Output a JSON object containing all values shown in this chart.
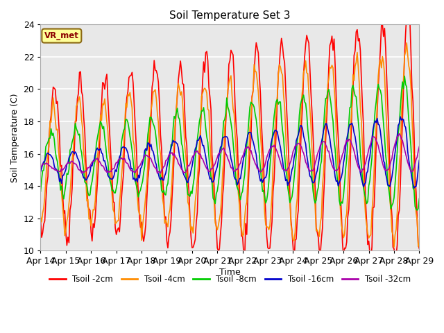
{
  "title": "Soil Temperature Set 3",
  "xlabel": "Time",
  "ylabel": "Soil Temperature (C)",
  "ylim": [
    10,
    24
  ],
  "xlim": [
    0,
    360
  ],
  "plot_bg_color": "#e8e8e8",
  "grid_color": "white",
  "annotation_text": "VR_met",
  "annotation_bg": "#ffff99",
  "annotation_border": "#8b6914",
  "series_colors": {
    "Tsoil -2cm": "#ff0000",
    "Tsoil -4cm": "#ff8c00",
    "Tsoil -8cm": "#00cc00",
    "Tsoil -16cm": "#0000cc",
    "Tsoil -32cm": "#aa00aa"
  },
  "xtick_labels": [
    "Apr 14",
    "Apr 15",
    "Apr 16",
    "Apr 17",
    "Apr 18",
    "Apr 19",
    "Apr 20",
    "Apr 21",
    "Apr 22",
    "Apr 23",
    "Apr 24",
    "Apr 25",
    "Apr 26",
    "Apr 27",
    "Apr 28",
    "Apr 29"
  ],
  "xtick_positions": [
    0,
    24,
    48,
    72,
    96,
    120,
    144,
    168,
    192,
    216,
    240,
    264,
    288,
    312,
    336,
    360
  ],
  "ytick_positions": [
    10,
    12,
    14,
    16,
    18,
    20,
    22,
    24
  ],
  "linewidth": 1.2
}
